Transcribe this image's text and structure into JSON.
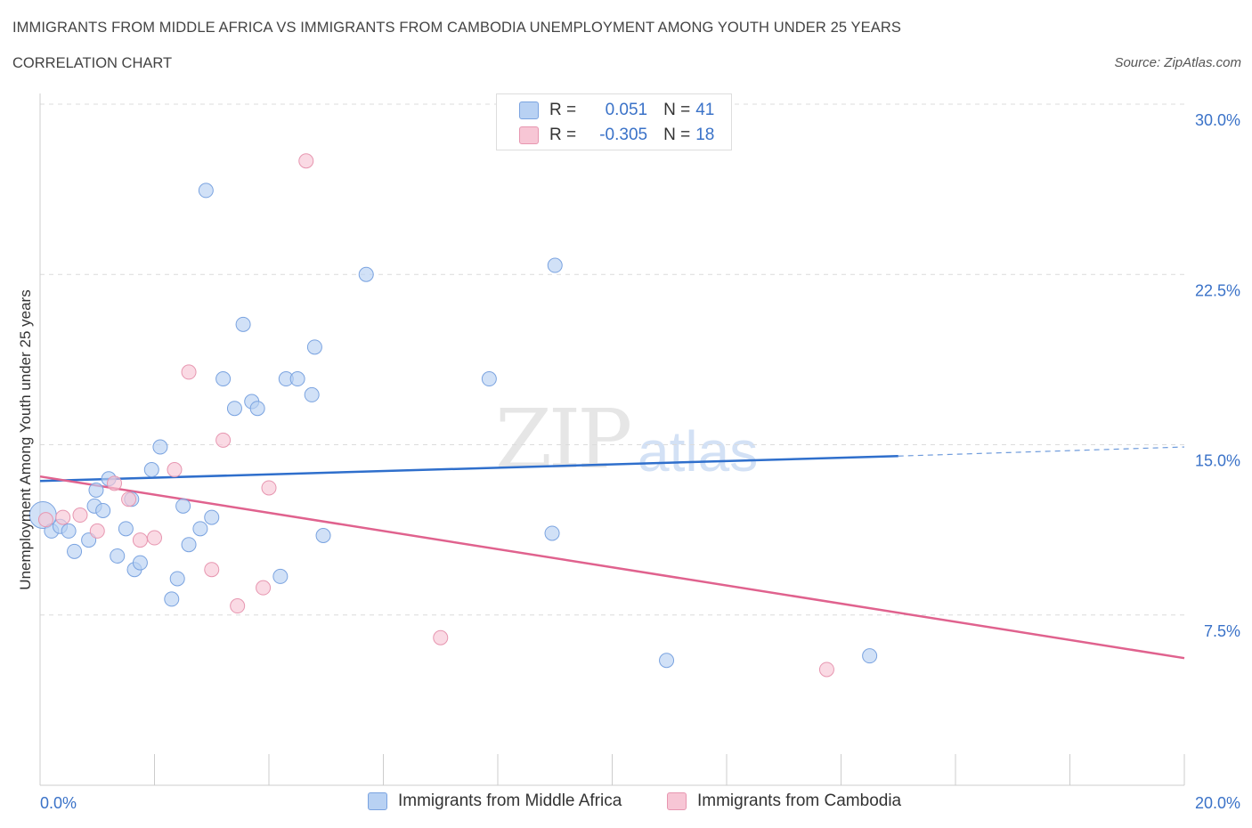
{
  "title": "IMMIGRANTS FROM MIDDLE AFRICA VS IMMIGRANTS FROM CAMBODIA UNEMPLOYMENT AMONG YOUTH UNDER 25 YEARS",
  "subtitle": "CORRELATION CHART",
  "source": "Source: ZipAtlas.com",
  "watermark": {
    "zip": "ZIP",
    "atlas": "atlas"
  },
  "legend": {
    "r_label": "R =",
    "n_label": "N =",
    "rows": [
      {
        "r": "0.051",
        "n": "41"
      },
      {
        "r": "-0.305",
        "n": "18"
      }
    ]
  },
  "colors": {
    "blue_fill": "#b8d1f3",
    "blue_stroke": "#7aa3e0",
    "blue_line": "#2f6fcc",
    "pink_fill": "#f7c6d5",
    "pink_stroke": "#e796b0",
    "pink_line": "#e0628e",
    "tick_text": "#3a72c8",
    "grid": "#dcdcdc"
  },
  "chart_data": {
    "type": "scatter",
    "xlabel": "",
    "ylabel": "Unemployment Among Youth under 25 years",
    "xlim": [
      0,
      20
    ],
    "ylim": [
      0,
      30
    ],
    "x_tick_labels": [
      "0.0%",
      "20.0%"
    ],
    "y_ticks": [
      7.5,
      15,
      22.5,
      30
    ],
    "y_tick_labels": [
      "7.5%",
      "15.0%",
      "22.5%",
      "30.0%"
    ],
    "grid": true,
    "legend_position": "top-center",
    "series": [
      {
        "name": "Immigrants from Middle Africa",
        "color": "#b8d1f3",
        "points": [
          [
            0.05,
            11.9
          ],
          [
            0.2,
            11.2
          ],
          [
            0.35,
            11.4
          ],
          [
            0.5,
            11.2
          ],
          [
            0.6,
            10.3
          ],
          [
            0.85,
            10.8
          ],
          [
            0.95,
            12.3
          ],
          [
            0.98,
            13.0
          ],
          [
            1.1,
            12.1
          ],
          [
            1.2,
            13.5
          ],
          [
            1.35,
            10.1
          ],
          [
            1.5,
            11.3
          ],
          [
            1.6,
            12.6
          ],
          [
            1.65,
            9.5
          ],
          [
            1.75,
            9.8
          ],
          [
            1.95,
            13.9
          ],
          [
            2.1,
            14.9
          ],
          [
            2.3,
            8.2
          ],
          [
            2.4,
            9.1
          ],
          [
            2.5,
            12.3
          ],
          [
            2.6,
            10.6
          ],
          [
            2.8,
            11.3
          ],
          [
            3.0,
            11.8
          ],
          [
            2.9,
            26.2
          ],
          [
            3.2,
            17.9
          ],
          [
            3.4,
            16.6
          ],
          [
            3.55,
            20.3
          ],
          [
            3.7,
            16.9
          ],
          [
            3.8,
            16.6
          ],
          [
            4.2,
            9.2
          ],
          [
            4.3,
            17.9
          ],
          [
            4.5,
            17.9
          ],
          [
            4.75,
            17.2
          ],
          [
            4.8,
            19.3
          ],
          [
            4.95,
            11.0
          ],
          [
            5.7,
            22.5
          ],
          [
            7.85,
            17.9
          ],
          [
            8.95,
            11.1
          ],
          [
            9.0,
            22.9
          ],
          [
            10.95,
            5.5
          ],
          [
            14.5,
            5.7
          ]
        ]
      },
      {
        "name": "Immigrants from Cambodia",
        "color": "#f7c6d5",
        "points": [
          [
            0.1,
            11.7
          ],
          [
            0.4,
            11.8
          ],
          [
            0.7,
            11.9
          ],
          [
            1.0,
            11.2
          ],
          [
            1.3,
            13.3
          ],
          [
            1.55,
            12.6
          ],
          [
            1.75,
            10.8
          ],
          [
            2.0,
            10.9
          ],
          [
            2.35,
            13.9
          ],
          [
            2.6,
            18.2
          ],
          [
            3.0,
            9.5
          ],
          [
            3.2,
            15.2
          ],
          [
            3.45,
            7.9
          ],
          [
            3.9,
            8.7
          ],
          [
            4.0,
            13.1
          ],
          [
            4.65,
            27.5
          ],
          [
            7.0,
            6.5
          ],
          [
            13.75,
            5.1
          ]
        ]
      }
    ],
    "trend_lines": [
      {
        "series": "Immigrants from Middle Africa",
        "solid": [
          [
            0,
            13.4
          ],
          [
            15,
            14.5
          ]
        ],
        "dashed": [
          [
            15,
            14.5
          ],
          [
            20,
            14.9
          ]
        ]
      },
      {
        "series": "Immigrants from Cambodia",
        "solid": [
          [
            0,
            13.6
          ],
          [
            20,
            5.6
          ]
        ]
      }
    ]
  }
}
